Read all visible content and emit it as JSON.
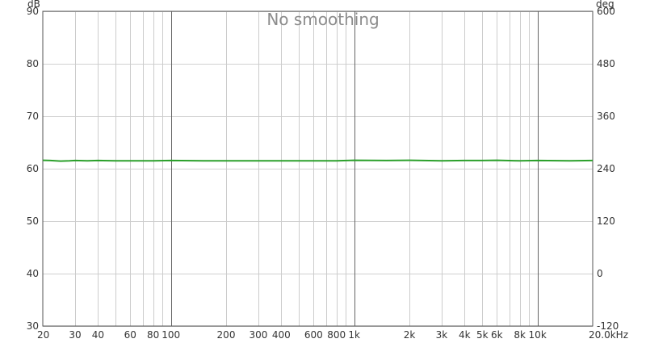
{
  "chart_data": {
    "type": "line",
    "title": "No smoothing",
    "x_axis": {
      "scale": "log",
      "range": [
        20,
        20000
      ],
      "ticks": [
        20,
        30,
        40,
        60,
        80,
        100,
        200,
        300,
        400,
        600,
        800,
        1000,
        2000,
        3000,
        4000,
        5000,
        6000,
        8000,
        10000,
        20000
      ],
      "tick_labels": [
        "20",
        "30",
        "40",
        "60",
        "80",
        "100",
        "200",
        "300",
        "400",
        "600",
        "800",
        "1k",
        "2k",
        "3k",
        "4k",
        "5k",
        "6k",
        "8k",
        "10k",
        "20.0kHz"
      ],
      "major_lines": [
        100,
        1000,
        10000
      ],
      "minor_lines": [
        30,
        40,
        50,
        60,
        70,
        80,
        90,
        200,
        300,
        400,
        500,
        600,
        700,
        800,
        900,
        2000,
        3000,
        4000,
        5000,
        6000,
        7000,
        8000,
        9000
      ]
    },
    "y_axis_left": {
      "unit_label": "dB",
      "range": [
        30,
        90
      ],
      "ticks": [
        30,
        40,
        50,
        60,
        70,
        80,
        90
      ]
    },
    "y_axis_right": {
      "unit_label": "deg",
      "range": [
        -120,
        600
      ],
      "ticks": [
        -120,
        0,
        120,
        240,
        360,
        480,
        600
      ]
    },
    "grid": true,
    "series": [
      {
        "color": "#2ca02c",
        "points": [
          [
            20,
            61.6
          ],
          [
            22,
            61.55
          ],
          [
            25,
            61.45
          ],
          [
            28,
            61.5
          ],
          [
            30,
            61.55
          ],
          [
            35,
            61.5
          ],
          [
            40,
            61.55
          ],
          [
            50,
            61.5
          ],
          [
            60,
            61.5
          ],
          [
            80,
            61.5
          ],
          [
            100,
            61.55
          ],
          [
            150,
            61.5
          ],
          [
            200,
            61.5
          ],
          [
            300,
            61.5
          ],
          [
            400,
            61.5
          ],
          [
            600,
            61.5
          ],
          [
            800,
            61.5
          ],
          [
            1000,
            61.6
          ],
          [
            1500,
            61.55
          ],
          [
            2000,
            61.6
          ],
          [
            3000,
            61.5
          ],
          [
            4000,
            61.55
          ],
          [
            5000,
            61.55
          ],
          [
            6000,
            61.6
          ],
          [
            8000,
            61.5
          ],
          [
            10000,
            61.55
          ],
          [
            15000,
            61.5
          ],
          [
            20000,
            61.55
          ]
        ]
      }
    ]
  }
}
